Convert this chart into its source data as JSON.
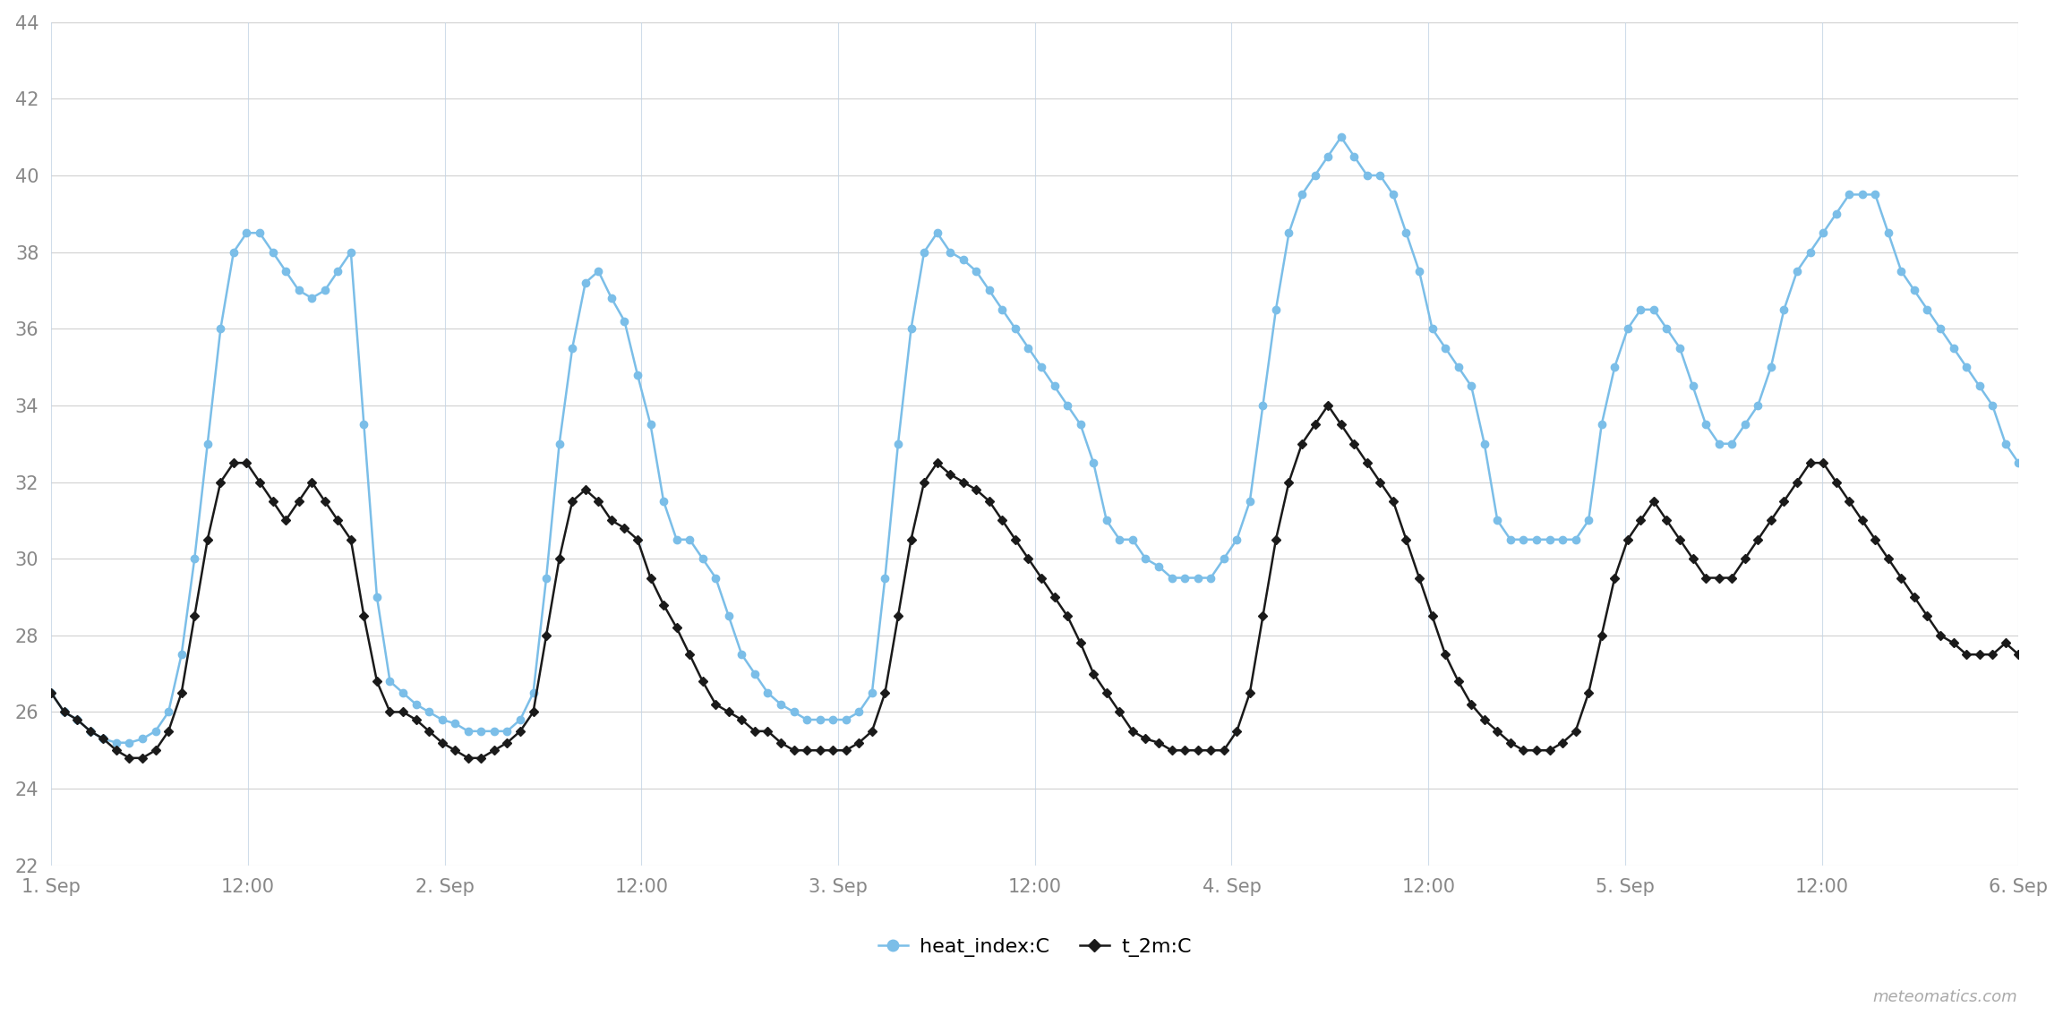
{
  "ylim": [
    22,
    44
  ],
  "yticks": [
    22,
    24,
    26,
    28,
    30,
    32,
    34,
    36,
    38,
    40,
    42,
    44
  ],
  "background_color": "#ffffff",
  "grid_color": "#d0d0d0",
  "heat_index_color": "#7bbee8",
  "t2m_color": "#1a1a1a",
  "legend_labels": [
    "heat_index:C",
    "t_2m:C"
  ],
  "watermark": "meteomatics.com",
  "xtick_labels": [
    "1. Sep",
    "12:00",
    "2. Sep",
    "12:00",
    "3. Sep",
    "12:00",
    "4. Sep",
    "12:00",
    "5. Sep",
    "12:00",
    "6. Sep"
  ],
  "xtick_positions": [
    0,
    12,
    24,
    36,
    48,
    60,
    72,
    84,
    96,
    108,
    120
  ],
  "xlim": [
    0,
    120
  ],
  "heat_index": [
    26.5,
    26.0,
    25.8,
    25.5,
    25.3,
    25.2,
    25.2,
    25.3,
    25.5,
    26.0,
    27.5,
    30.0,
    33.0,
    36.0,
    38.0,
    38.5,
    38.5,
    38.0,
    37.5,
    37.0,
    36.8,
    37.0,
    37.5,
    38.0,
    33.5,
    29.0,
    26.8,
    26.5,
    26.2,
    26.0,
    25.8,
    25.7,
    25.5,
    25.5,
    25.5,
    25.5,
    25.8,
    26.5,
    29.5,
    33.0,
    35.5,
    37.2,
    37.5,
    36.8,
    36.2,
    34.8,
    33.5,
    31.5,
    30.5,
    30.5,
    30.0,
    29.5,
    28.5,
    27.5,
    27.0,
    26.5,
    26.2,
    26.0,
    25.8,
    25.8,
    25.8,
    25.8,
    26.0,
    26.5,
    29.5,
    33.0,
    36.0,
    38.0,
    38.5,
    38.0,
    37.8,
    37.5,
    37.0,
    36.5,
    36.0,
    35.5,
    35.0,
    34.5,
    34.0,
    33.5,
    32.5,
    31.0,
    30.5,
    30.5,
    30.0,
    29.8,
    29.5,
    29.5,
    29.5,
    29.5,
    30.0,
    30.5,
    31.5,
    34.0,
    36.5,
    38.5,
    39.5,
    40.0,
    40.5,
    41.0,
    40.5,
    40.0,
    40.0,
    39.5,
    38.5,
    37.5,
    36.0,
    35.5,
    35.0,
    34.5,
    33.0,
    31.0,
    30.5,
    30.5,
    30.5,
    30.5,
    30.5,
    30.5,
    31.0,
    33.5,
    35.0,
    36.0,
    36.5,
    36.5,
    36.0,
    35.5,
    34.5,
    33.5,
    33.0,
    33.0,
    33.5,
    34.0,
    35.0,
    36.5,
    37.5,
    38.0,
    38.5,
    39.0,
    39.5,
    39.5,
    39.5,
    38.5,
    37.5,
    37.0,
    36.5,
    36.0,
    35.5,
    35.0,
    34.5,
    34.0,
    33.0,
    32.5
  ],
  "t2m": [
    26.5,
    26.0,
    25.8,
    25.5,
    25.3,
    25.0,
    24.8,
    24.8,
    25.0,
    25.5,
    26.5,
    28.5,
    30.5,
    32.0,
    32.5,
    32.5,
    32.0,
    31.5,
    31.0,
    31.5,
    32.0,
    31.5,
    31.0,
    30.5,
    28.5,
    26.8,
    26.0,
    26.0,
    25.8,
    25.5,
    25.2,
    25.0,
    24.8,
    24.8,
    25.0,
    25.2,
    25.5,
    26.0,
    28.0,
    30.0,
    31.5,
    31.8,
    31.5,
    31.0,
    30.8,
    30.5,
    29.5,
    28.8,
    28.2,
    27.5,
    26.8,
    26.2,
    26.0,
    25.8,
    25.5,
    25.5,
    25.2,
    25.0,
    25.0,
    25.0,
    25.0,
    25.0,
    25.2,
    25.5,
    26.5,
    28.5,
    30.5,
    32.0,
    32.5,
    32.2,
    32.0,
    31.8,
    31.5,
    31.0,
    30.5,
    30.0,
    29.5,
    29.0,
    28.5,
    27.8,
    27.0,
    26.5,
    26.0,
    25.5,
    25.3,
    25.2,
    25.0,
    25.0,
    25.0,
    25.0,
    25.0,
    25.5,
    26.5,
    28.5,
    30.5,
    32.0,
    33.0,
    33.5,
    34.0,
    33.5,
    33.0,
    32.5,
    32.0,
    31.5,
    30.5,
    29.5,
    28.5,
    27.5,
    26.8,
    26.2,
    25.8,
    25.5,
    25.2,
    25.0,
    25.0,
    25.0,
    25.2,
    25.5,
    26.5,
    28.0,
    29.5,
    30.5,
    31.0,
    31.5,
    31.0,
    30.5,
    30.0,
    29.5,
    29.5,
    29.5,
    30.0,
    30.5,
    31.0,
    31.5,
    32.0,
    32.5,
    32.5,
    32.0,
    31.5,
    31.0,
    30.5,
    30.0,
    29.5,
    29.0,
    28.5,
    28.0,
    27.8,
    27.5,
    27.5,
    27.5,
    27.8,
    27.5
  ]
}
